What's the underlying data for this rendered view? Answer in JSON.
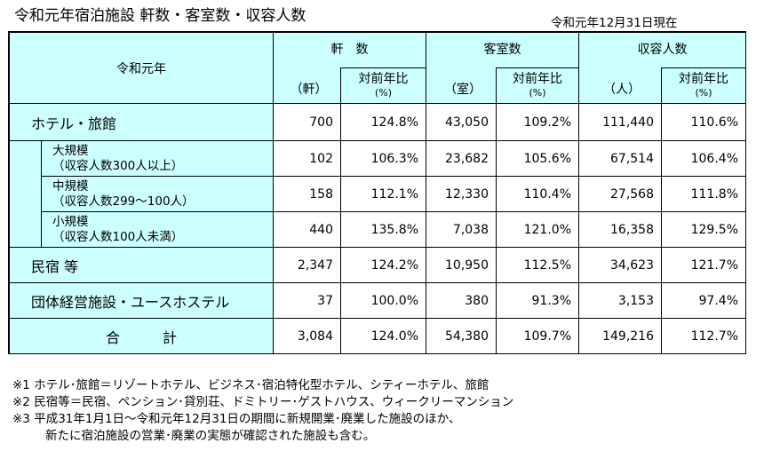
{
  "title": "令和元年宿泊施設 軒数・客室数・収容人数",
  "as_of": "令和元年12月31日現在",
  "header": {
    "corner": "令和元年",
    "groups": [
      "軒　数",
      "客室数",
      "収容人数"
    ],
    "units": [
      "（軒）",
      "（室）",
      "（人）"
    ],
    "ratio_label": "対前年比",
    "ratio_unit": "(%)"
  },
  "rows": [
    {
      "label": "ホテル・旅館",
      "kind": "main",
      "values": [
        "700",
        "124.8%",
        "43,050",
        "109.2%",
        "111,440",
        "110.6%"
      ]
    },
    {
      "label": "大規模",
      "sub": "（収容人数300人以上）",
      "kind": "sub",
      "values": [
        "102",
        "106.3%",
        "23,682",
        "105.6%",
        "67,514",
        "106.4%"
      ]
    },
    {
      "label": "中規模",
      "sub": "（収容人数299～100人）",
      "kind": "sub",
      "values": [
        "158",
        "112.1%",
        "12,330",
        "110.4%",
        "27,568",
        "111.8%"
      ]
    },
    {
      "label": "小規模",
      "sub": "（収容人数100人未満）",
      "kind": "sub",
      "values": [
        "440",
        "135.8%",
        "7,038",
        "121.0%",
        "16,358",
        "129.5%"
      ]
    },
    {
      "label": "民宿 等",
      "kind": "main",
      "values": [
        "2,347",
        "124.2%",
        "10,950",
        "112.5%",
        "34,623",
        "121.7%"
      ]
    },
    {
      "label": "団体経営施設・ユースホステル",
      "kind": "main",
      "values": [
        "37",
        "100.0%",
        "380",
        "91.3%",
        "3,153",
        "97.4%"
      ]
    },
    {
      "label": "合　　　計",
      "kind": "total",
      "values": [
        "3,084",
        "124.0%",
        "54,380",
        "109.7%",
        "149,216",
        "112.7%"
      ]
    }
  ],
  "notes": [
    "※1 ホテル･旅館＝リゾートホテル、ビジネス･宿泊特化型ホテル、シティーホテル、旅館",
    "※2 民宿等＝民宿、ペンション･貸別荘、ドミトリー･ゲストハウス、ウィークリーマンション",
    "※3 平成31年1月1日～令和元年12月31日の期間に新規開業･廃業した施設のほか、",
    "新たに宿泊施設の営業･廃業の実態が確認された施設も含む。"
  ],
  "colors": {
    "header_bg": "#ccffff",
    "cell_bg": "#ffffff"
  }
}
